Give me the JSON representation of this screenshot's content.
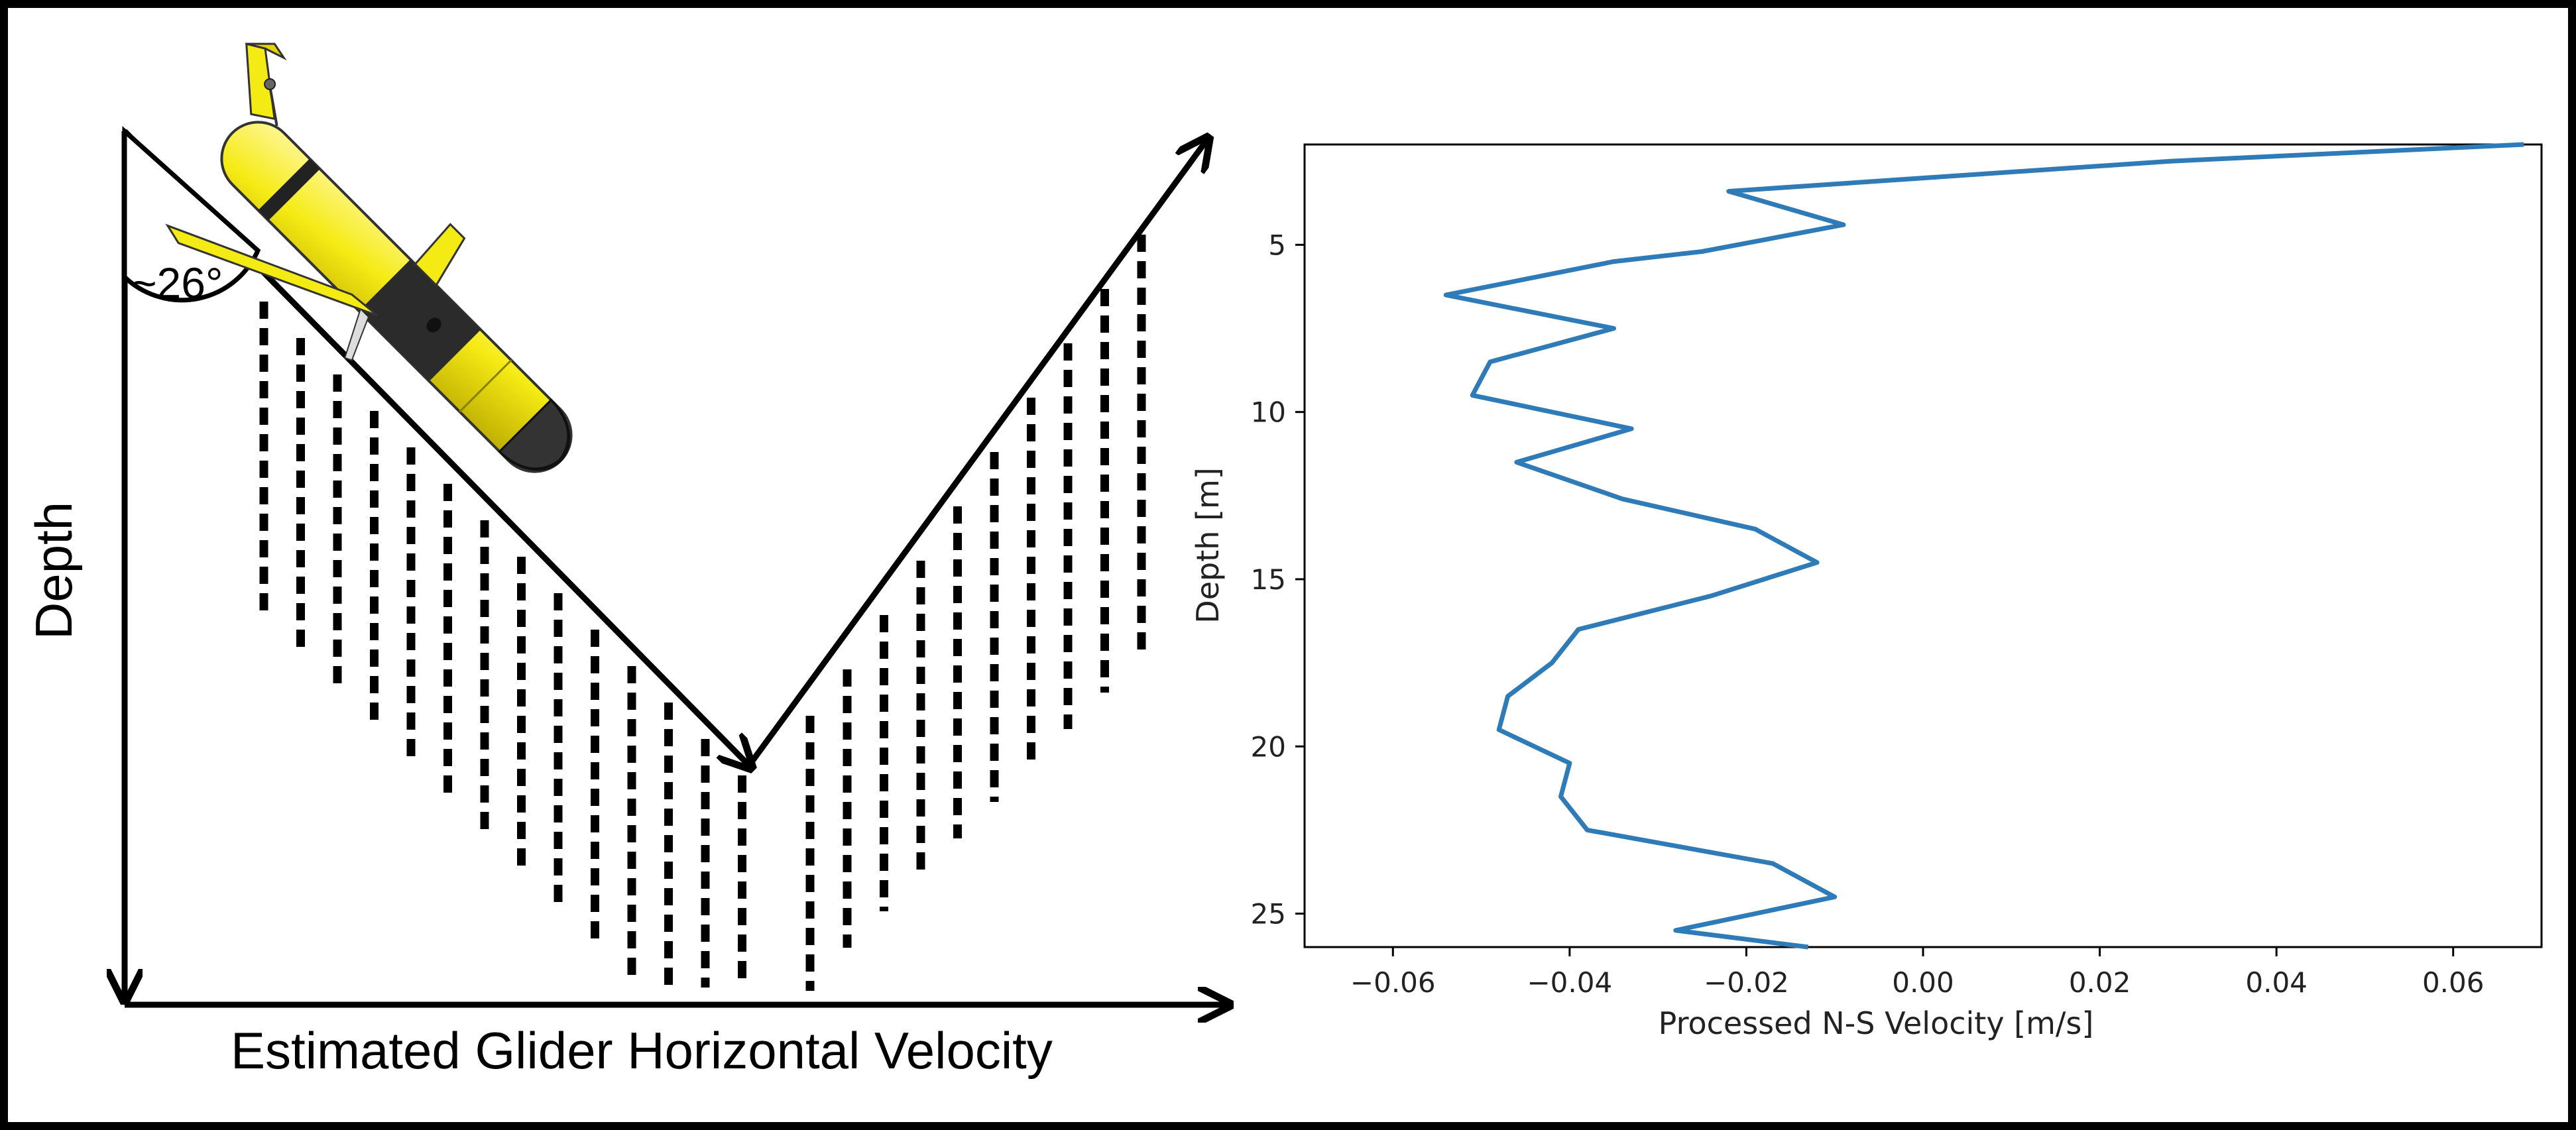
{
  "diagram": {
    "angle_label": "~26°",
    "depth_label": "Depth",
    "velocity_label": "Estimated Glider Horizontal Velocity",
    "glider_icon": "underwater-glider-icon",
    "glider_color": "#f5eb14",
    "bin_columns_left": 14,
    "bin_columns_right": 9
  },
  "chart_data": {
    "type": "line",
    "title": "",
    "xlabel": "Processed N-S Velocity [m/s]",
    "ylabel": "Depth [m]",
    "xlim": [
      -0.07,
      0.07
    ],
    "ylim": [
      26,
      2
    ],
    "y_inverted": true,
    "xticks": [
      -0.06,
      -0.04,
      -0.02,
      0.0,
      0.02,
      0.04,
      0.06
    ],
    "xtick_labels": [
      "−0.06",
      "−0.04",
      "−0.02",
      "0.00",
      "0.02",
      "0.04",
      "0.06"
    ],
    "yticks": [
      5,
      10,
      15,
      20,
      25
    ],
    "ytick_labels": [
      "5",
      "10",
      "15",
      "20",
      "25"
    ],
    "grid": false,
    "series": [
      {
        "color": "#2f7bb8",
        "x": [
          0.068,
          0.028,
          -0.022,
          -0.009,
          -0.025,
          -0.035,
          -0.054,
          -0.035,
          -0.049,
          -0.051,
          -0.033,
          -0.046,
          -0.034,
          -0.019,
          -0.012,
          -0.024,
          -0.039,
          -0.042,
          -0.047,
          -0.048,
          -0.04,
          -0.041,
          -0.038,
          -0.017,
          -0.01,
          -0.028,
          -0.013
        ],
        "y": [
          2.0,
          2.5,
          3.4,
          4.4,
          5.2,
          5.5,
          6.5,
          7.5,
          8.5,
          9.5,
          10.5,
          11.5,
          12.6,
          13.5,
          14.5,
          15.5,
          16.5,
          17.5,
          18.5,
          19.5,
          20.5,
          21.5,
          22.5,
          23.5,
          24.5,
          25.5,
          26.0
        ]
      }
    ]
  }
}
